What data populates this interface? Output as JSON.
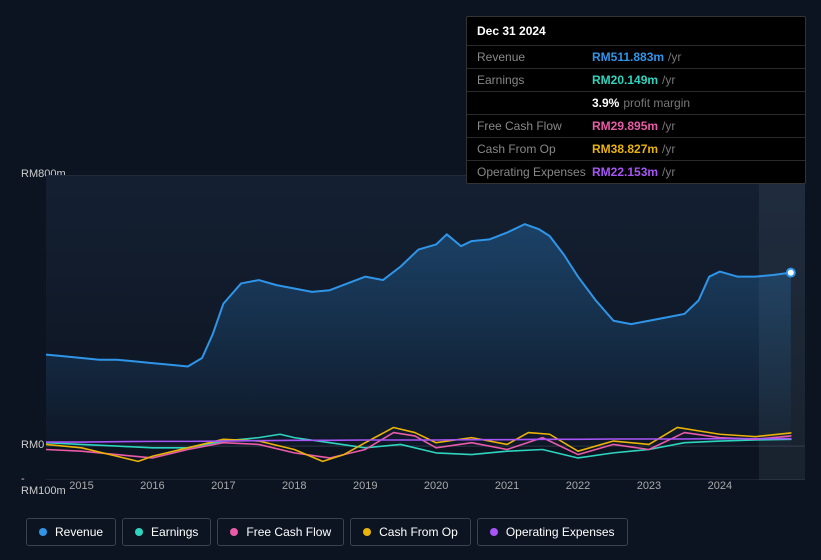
{
  "tooltip": {
    "date": "Dec 31 2024",
    "rows": [
      {
        "label": "Revenue",
        "value": "RM511.883m",
        "suffix": "/yr",
        "color": "#2f95e8"
      },
      {
        "label": "Earnings",
        "value": "RM20.149m",
        "suffix": "/yr",
        "color": "#2dd4bf"
      },
      {
        "label": "",
        "value": "3.9%",
        "margin_label": "profit margin",
        "color": "#ffffff"
      },
      {
        "label": "Free Cash Flow",
        "value": "RM29.895m",
        "suffix": "/yr",
        "color": "#e85ba8"
      },
      {
        "label": "Cash From Op",
        "value": "RM38.827m",
        "suffix": "/yr",
        "color": "#eab308"
      },
      {
        "label": "Operating Expenses",
        "value": "RM22.153m",
        "suffix": "/yr",
        "color": "#a855f7"
      }
    ]
  },
  "chart": {
    "background_color": "#0d1421",
    "plot_bg_top": "#142032",
    "plot_bg_bottom": "#0d1421",
    "grid_color": "#2a3442",
    "y_axis": {
      "min": -100,
      "max": 800,
      "ticks": [
        {
          "v": 800,
          "label": "RM800m"
        },
        {
          "v": 0,
          "label": "RM0"
        },
        {
          "v": -100,
          "label": "-RM100m"
        }
      ],
      "label_color": "#cccccc",
      "label_fontsize": 11
    },
    "x_axis": {
      "min": 2014.5,
      "max": 2025.2,
      "ticks": [
        2015,
        2016,
        2017,
        2018,
        2019,
        2020,
        2021,
        2022,
        2023,
        2024
      ],
      "label_color": "#aaaaaa",
      "label_fontsize": 11
    },
    "hover_x": 2025.0,
    "hover_band_width_years": 0.9,
    "series": [
      {
        "name": "Revenue",
        "color": "#2f95e8",
        "fill_top_opacity": 0.3,
        "fill_bottom_opacity": 0.02,
        "line_width": 2,
        "end_marker": true,
        "data": [
          [
            2014.5,
            270
          ],
          [
            2014.75,
            265
          ],
          [
            2015.0,
            260
          ],
          [
            2015.25,
            255
          ],
          [
            2015.5,
            255
          ],
          [
            2015.75,
            250
          ],
          [
            2016.0,
            245
          ],
          [
            2016.25,
            240
          ],
          [
            2016.5,
            235
          ],
          [
            2016.7,
            260
          ],
          [
            2016.85,
            330
          ],
          [
            2017.0,
            420
          ],
          [
            2017.25,
            480
          ],
          [
            2017.5,
            490
          ],
          [
            2017.75,
            475
          ],
          [
            2018.0,
            465
          ],
          [
            2018.25,
            455
          ],
          [
            2018.5,
            460
          ],
          [
            2018.75,
            480
          ],
          [
            2019.0,
            500
          ],
          [
            2019.25,
            490
          ],
          [
            2019.5,
            530
          ],
          [
            2019.75,
            580
          ],
          [
            2020.0,
            595
          ],
          [
            2020.15,
            625
          ],
          [
            2020.35,
            590
          ],
          [
            2020.5,
            605
          ],
          [
            2020.75,
            610
          ],
          [
            2021.0,
            630
          ],
          [
            2021.25,
            655
          ],
          [
            2021.45,
            640
          ],
          [
            2021.6,
            620
          ],
          [
            2021.8,
            565
          ],
          [
            2022.0,
            500
          ],
          [
            2022.25,
            430
          ],
          [
            2022.5,
            370
          ],
          [
            2022.75,
            360
          ],
          [
            2023.0,
            370
          ],
          [
            2023.25,
            380
          ],
          [
            2023.5,
            390
          ],
          [
            2023.7,
            430
          ],
          [
            2023.85,
            500
          ],
          [
            2024.0,
            515
          ],
          [
            2024.25,
            500
          ],
          [
            2024.5,
            500
          ],
          [
            2024.75,
            505
          ],
          [
            2025.0,
            512
          ]
        ]
      },
      {
        "name": "Earnings",
        "color": "#2dd4bf",
        "line_width": 1.6,
        "data": [
          [
            2014.5,
            10
          ],
          [
            2015.0,
            5
          ],
          [
            2015.5,
            0
          ],
          [
            2016.0,
            -5
          ],
          [
            2016.5,
            -5
          ],
          [
            2017.0,
            15
          ],
          [
            2017.5,
            25
          ],
          [
            2017.8,
            35
          ],
          [
            2018.0,
            25
          ],
          [
            2018.5,
            10
          ],
          [
            2019.0,
            -5
          ],
          [
            2019.5,
            5
          ],
          [
            2020.0,
            -20
          ],
          [
            2020.5,
            -25
          ],
          [
            2021.0,
            -15
          ],
          [
            2021.5,
            -10
          ],
          [
            2022.0,
            -35
          ],
          [
            2022.5,
            -20
          ],
          [
            2023.0,
            -10
          ],
          [
            2023.5,
            10
          ],
          [
            2024.0,
            15
          ],
          [
            2024.5,
            18
          ],
          [
            2025.0,
            20
          ]
        ]
      },
      {
        "name": "Free Cash Flow",
        "color": "#e85ba8",
        "line_width": 1.6,
        "data": [
          [
            2014.5,
            -10
          ],
          [
            2015.0,
            -15
          ],
          [
            2015.5,
            -25
          ],
          [
            2016.0,
            -35
          ],
          [
            2016.5,
            -10
          ],
          [
            2017.0,
            10
          ],
          [
            2017.5,
            5
          ],
          [
            2018.0,
            -20
          ],
          [
            2018.5,
            -35
          ],
          [
            2019.0,
            -10
          ],
          [
            2019.4,
            40
          ],
          [
            2019.7,
            30
          ],
          [
            2020.0,
            -5
          ],
          [
            2020.5,
            10
          ],
          [
            2021.0,
            -10
          ],
          [
            2021.5,
            25
          ],
          [
            2022.0,
            -25
          ],
          [
            2022.5,
            5
          ],
          [
            2023.0,
            -10
          ],
          [
            2023.5,
            40
          ],
          [
            2024.0,
            25
          ],
          [
            2024.5,
            20
          ],
          [
            2025.0,
            30
          ]
        ]
      },
      {
        "name": "Cash From Op",
        "color": "#eab308",
        "line_width": 1.6,
        "data": [
          [
            2014.5,
            5
          ],
          [
            2015.0,
            -5
          ],
          [
            2015.5,
            -30
          ],
          [
            2015.8,
            -45
          ],
          [
            2016.0,
            -30
          ],
          [
            2016.5,
            -5
          ],
          [
            2017.0,
            20
          ],
          [
            2017.5,
            15
          ],
          [
            2018.0,
            -10
          ],
          [
            2018.4,
            -45
          ],
          [
            2018.7,
            -25
          ],
          [
            2019.0,
            10
          ],
          [
            2019.4,
            55
          ],
          [
            2019.7,
            40
          ],
          [
            2020.0,
            10
          ],
          [
            2020.5,
            25
          ],
          [
            2021.0,
            5
          ],
          [
            2021.3,
            40
          ],
          [
            2021.6,
            35
          ],
          [
            2022.0,
            -15
          ],
          [
            2022.5,
            15
          ],
          [
            2023.0,
            5
          ],
          [
            2023.4,
            55
          ],
          [
            2023.7,
            45
          ],
          [
            2024.0,
            35
          ],
          [
            2024.5,
            28
          ],
          [
            2025.0,
            39
          ]
        ]
      },
      {
        "name": "Operating Expenses",
        "color": "#a855f7",
        "line_width": 1.6,
        "data": [
          [
            2014.5,
            12
          ],
          [
            2015.0,
            12
          ],
          [
            2015.5,
            13
          ],
          [
            2016.0,
            14
          ],
          [
            2016.5,
            14
          ],
          [
            2017.0,
            15
          ],
          [
            2017.5,
            16
          ],
          [
            2018.0,
            17
          ],
          [
            2018.5,
            17
          ],
          [
            2019.0,
            18
          ],
          [
            2019.5,
            18
          ],
          [
            2020.0,
            18
          ],
          [
            2020.5,
            19
          ],
          [
            2021.0,
            19
          ],
          [
            2021.5,
            20
          ],
          [
            2022.0,
            20
          ],
          [
            2022.5,
            21
          ],
          [
            2023.0,
            21
          ],
          [
            2023.5,
            21
          ],
          [
            2024.0,
            22
          ],
          [
            2024.5,
            22
          ],
          [
            2025.0,
            22
          ]
        ]
      }
    ]
  },
  "legend": [
    {
      "label": "Revenue",
      "color": "#2f95e8"
    },
    {
      "label": "Earnings",
      "color": "#2dd4bf"
    },
    {
      "label": "Free Cash Flow",
      "color": "#e85ba8"
    },
    {
      "label": "Cash From Op",
      "color": "#eab308"
    },
    {
      "label": "Operating Expenses",
      "color": "#a855f7"
    }
  ]
}
